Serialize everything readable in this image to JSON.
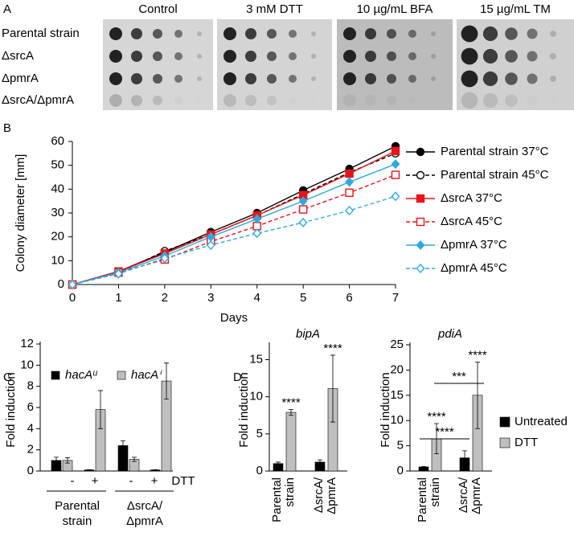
{
  "chart_data": [
    {
      "type": "spot-assay",
      "panel_label": "A",
      "columns": [
        "Control",
        "3 mM DTT",
        "10 µg/mL BFA",
        "15 µg/mL TM"
      ],
      "rows": [
        "Parental strain",
        "ΔsrcA",
        "ΔpmrA",
        "ΔsrcA/ΔpmrA"
      ]
    },
    {
      "type": "line",
      "panel_label": "B",
      "ylabel": "Colony diameter [mm]",
      "xlabel": "Days",
      "x": [
        0,
        1,
        2,
        3,
        4,
        5,
        6,
        7
      ],
      "xlim": [
        0,
        7
      ],
      "xticks": [
        0,
        1,
        2,
        3,
        4,
        5,
        6,
        7
      ],
      "ylim": [
        0,
        60
      ],
      "yticks": [
        0,
        10,
        20,
        30,
        40,
        50,
        60
      ],
      "series": [
        {
          "name": "Parental strain 37°C",
          "color": "#000000",
          "marker": "circle",
          "filled": true,
          "dashed": false,
          "values": [
            0,
            5.5,
            13.5,
            22,
            30,
            39.5,
            48.5,
            58
          ]
        },
        {
          "name": "Parental strain 45°C",
          "color": "#000000",
          "marker": "circle",
          "filled": false,
          "dashed": true,
          "values": [
            0,
            5,
            14,
            21,
            29,
            38,
            47,
            55
          ]
        },
        {
          "name": "ΔsrcA 37°C",
          "color": "#e8141a",
          "marker": "square",
          "filled": true,
          "dashed": false,
          "values": [
            0,
            5.5,
            13,
            21,
            29,
            37.5,
            46.5,
            56
          ]
        },
        {
          "name": "ΔsrcA 45°C",
          "color": "#e8141a",
          "marker": "square",
          "filled": false,
          "dashed": true,
          "values": [
            0,
            5,
            10.5,
            18,
            24.5,
            31.5,
            38.5,
            46
          ]
        },
        {
          "name": "ΔpmrA 37°C",
          "color": "#2eaadf",
          "marker": "diamond",
          "filled": true,
          "dashed": false,
          "values": [
            0,
            5,
            12,
            20,
            27.5,
            35,
            43,
            50.5
          ]
        },
        {
          "name": "ΔpmrA 45°C",
          "color": "#2eaadf",
          "marker": "diamond",
          "filled": false,
          "dashed": true,
          "values": [
            0,
            4.5,
            11,
            16.5,
            21.5,
            26,
            31,
            37
          ]
        }
      ]
    },
    {
      "type": "bar",
      "panel_label": "C",
      "ylabel": "Fold induction",
      "xlabel": "DTT",
      "categories": [
        "-",
        "+",
        "-",
        "+"
      ],
      "groups": [
        [
          "Parental",
          "strain"
        ],
        [
          "ΔsrcA/",
          "ΔpmrA"
        ]
      ],
      "ylim": [
        0,
        12
      ],
      "yticks": [
        0,
        2,
        4,
        6,
        8,
        10,
        12
      ],
      "series": [
        {
          "name": "hacAᵘ",
          "color": "#000000",
          "values": [
            1.0,
            0.1,
            2.4,
            0.1
          ],
          "errors": [
            0.3,
            0.02,
            0.45,
            0.02
          ]
        },
        {
          "name": "hacAⁱ",
          "color": "#bfbfbf",
          "values": [
            1.0,
            5.8,
            1.1,
            8.5
          ],
          "errors": [
            0.25,
            1.8,
            0.2,
            1.7
          ]
        }
      ]
    },
    {
      "type": "bar",
      "panel_label": "D",
      "title": "bipA",
      "ylabel": "Fold induction",
      "categories": [
        [
          "Parental",
          "strain"
        ],
        [
          "ΔsrcA/",
          "ΔpmrA"
        ]
      ],
      "ylim": [
        0,
        17
      ],
      "yticks": [
        0,
        5,
        10,
        15
      ],
      "series": [
        {
          "color": "#000000",
          "values": [
            1.0,
            1.2
          ],
          "errors": [
            0.2,
            0.3
          ]
        },
        {
          "color": "#bfbfbf",
          "values": [
            7.9,
            11.1
          ],
          "errors": [
            0.4,
            4.5
          ]
        }
      ],
      "annotations": [
        "****",
        "****"
      ]
    },
    {
      "type": "bar",
      "title": "pdiA",
      "ylabel": "Fold induction",
      "categories": [
        [
          "Parental",
          "strain"
        ],
        [
          "ΔsrcA/",
          "ΔpmrA"
        ]
      ],
      "ylim": [
        0,
        25
      ],
      "yticks": [
        0,
        5,
        10,
        15,
        20,
        25
      ],
      "series": [
        {
          "name": "Untreated",
          "color": "#000000",
          "values": [
            0.8,
            2.6
          ],
          "errors": [
            0.1,
            1.4
          ]
        },
        {
          "name": "DTT",
          "color": "#bfbfbf",
          "values": [
            6.4,
            15.0
          ],
          "errors": [
            3.0,
            6.6
          ]
        }
      ],
      "annotations": [
        "****",
        "****",
        "****",
        "***"
      ]
    }
  ]
}
